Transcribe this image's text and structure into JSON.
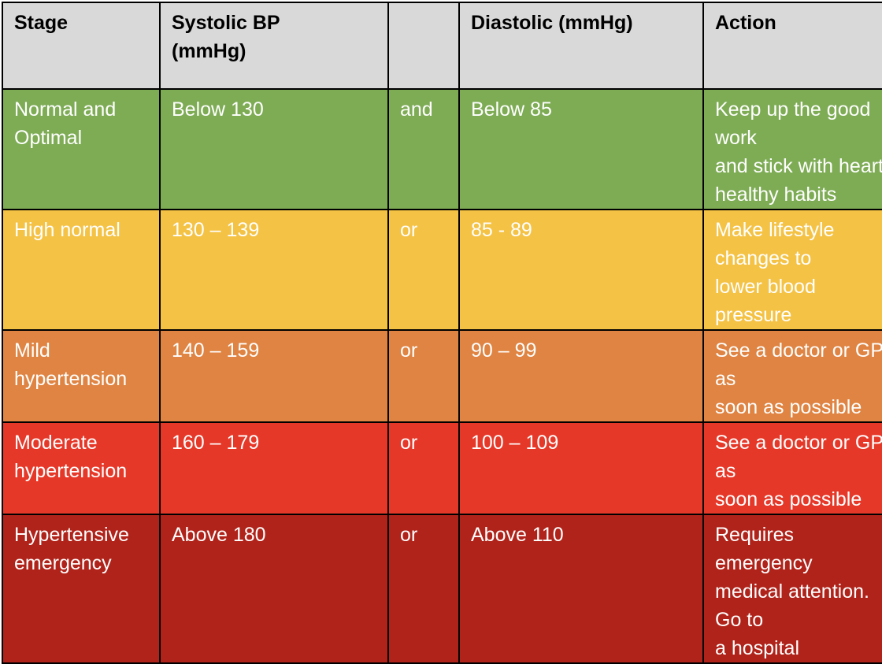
{
  "table": {
    "headers": {
      "stage": "Stage",
      "systolic": "Systolic BP (mmHg)",
      "connector": "",
      "diastolic": "Diastolic (mmHg)",
      "action": "Action"
    },
    "rows": [
      {
        "stage": "Normal and Optimal",
        "systolic": "Below 130",
        "connector": "and",
        "diastolic": "Below 85",
        "action": "Keep up the good work\nand stick with heart\nhealthy habits",
        "color": "#7eac55"
      },
      {
        "stage": "High normal",
        "systolic": "130 – 139",
        "connector": "or",
        "diastolic": "85 - 89",
        "action": "Make lifestyle changes to\nlower blood pressure",
        "color": "#f4c244"
      },
      {
        "stage": "Mild hypertension",
        "systolic": "140 – 159",
        "connector": "or",
        "diastolic": "90 – 99",
        "action": "See a doctor or GP as\nsoon as possible",
        "color": "#df8442"
      },
      {
        "stage": "Moderate hypertension",
        "systolic": "160 – 179",
        "connector": "or",
        "diastolic": "100 – 109",
        "action": "See a doctor or GP as\nsoon as possible",
        "color": "#e63828"
      },
      {
        "stage": "Hypertensive emergency",
        "systolic": "Above 180",
        "connector": "or",
        "diastolic": "Above 110",
        "action": "Requires emergency\nmedical attention.  Go to\na hospital",
        "color": "#b0231a"
      }
    ],
    "header_color": "#d9d9d9"
  }
}
